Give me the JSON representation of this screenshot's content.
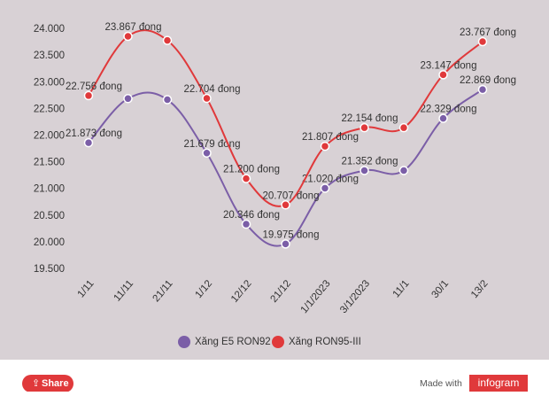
{
  "chart_data": {
    "type": "line",
    "categories": [
      "1/11",
      "11/11",
      "21/11",
      "1/12",
      "12/12",
      "21/12",
      "1/1/2023",
      "3/1/2023",
      "11/1",
      "30/1",
      "13/2"
    ],
    "series": [
      {
        "name": "Xăng E5 RON92",
        "color": "#7b5ea7",
        "values": [
          21873,
          22700,
          22680,
          21679,
          20346,
          19975,
          21020,
          21352,
          21352,
          22329,
          22869
        ],
        "value_labels": [
          "21.873 đong",
          null,
          null,
          "21.679 đong",
          "20.346 đong",
          "19.975 đong",
          "21.020 đong",
          "21.352 đong",
          null,
          "22.329 đong",
          "22.869 đong"
        ]
      },
      {
        "name": "Xăng RON95-III",
        "color": "#e0393b",
        "values": [
          22756,
          23867,
          23790,
          22704,
          21200,
          20707,
          21807,
          22154,
          22154,
          23147,
          23767
        ],
        "value_labels": [
          "22.756 đong",
          "23.867 đong",
          null,
          "22.704 đong",
          "21.200 đong",
          "20.707 đong",
          "21.807 đong",
          "22.154 đong",
          null,
          "23.147 đong",
          "23.767 đong"
        ]
      }
    ],
    "ylim": [
      19500,
      24000
    ],
    "yticks": [
      {
        "value": 19500,
        "label": "19.500"
      },
      {
        "value": 20000,
        "label": "20.000"
      },
      {
        "value": 20500,
        "label": "20.500"
      },
      {
        "value": 21000,
        "label": "21.000"
      },
      {
        "value": 21500,
        "label": "21.500"
      },
      {
        "value": 22000,
        "label": "22.000"
      },
      {
        "value": 22500,
        "label": "22.500"
      },
      {
        "value": 23000,
        "label": "23.000"
      },
      {
        "value": 23500,
        "label": "23.500"
      },
      {
        "value": 24000,
        "label": "24.000"
      }
    ],
    "legend": "bottom"
  },
  "footer": {
    "share": "Share",
    "made_with": "Made with",
    "brand": "infogram"
  }
}
